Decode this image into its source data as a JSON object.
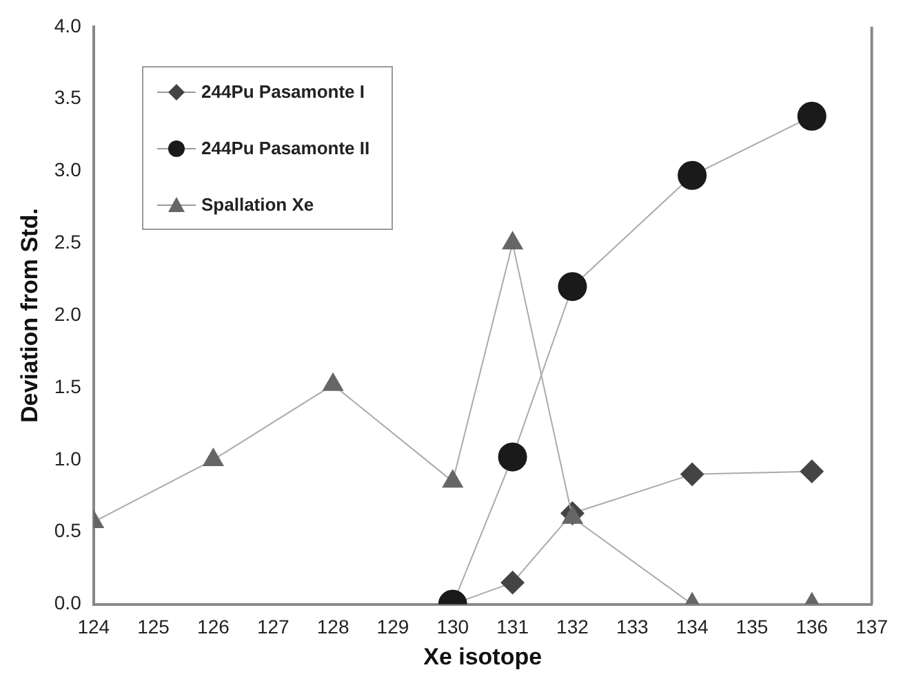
{
  "chart_data": {
    "type": "line",
    "xlabel": "Xe isotope",
    "ylabel": "Deviation from Std.",
    "xlim": [
      124,
      137
    ],
    "xticks": [
      124,
      125,
      126,
      127,
      128,
      129,
      130,
      131,
      132,
      133,
      134,
      135,
      136,
      137
    ],
    "ylim": [
      0,
      4
    ],
    "yticks": [
      {
        "value": 0,
        "label": "0.0"
      },
      {
        "value": 0.5,
        "label": "0.5"
      },
      {
        "value": 1,
        "label": "1.0"
      },
      {
        "value": 1.5,
        "label": "1.5"
      },
      {
        "value": 2,
        "label": "2.0"
      },
      {
        "value": 2.5,
        "label": "2.5"
      },
      {
        "value": 3,
        "label": "3.0"
      },
      {
        "value": 3.5,
        "label": "3.5"
      },
      {
        "value": 4,
        "label": "4.0"
      }
    ],
    "grid": false,
    "legend": "top left",
    "series": [
      {
        "name": "244Pu Pasamonte I",
        "color": "#444444",
        "marker": "diamond",
        "x": [
          130,
          131,
          132,
          134,
          136
        ],
        "values": [
          0,
          0.15,
          0.63,
          0.9,
          0.92
        ]
      },
      {
        "name": "244Pu Pasamonte II",
        "color": "#1a1a1a",
        "marker": "circle",
        "x": [
          130,
          131,
          132,
          134,
          136
        ],
        "values": [
          0,
          1.02,
          2.2,
          2.97,
          3.38
        ]
      },
      {
        "name": "Spallation Xe",
        "color": "#666666",
        "marker": "triangle",
        "x": [
          124,
          126,
          128,
          130,
          131,
          132,
          134,
          136
        ],
        "values": [
          0.57,
          1.0,
          1.52,
          0.85,
          2.5,
          0.6,
          0,
          0
        ]
      }
    ]
  }
}
